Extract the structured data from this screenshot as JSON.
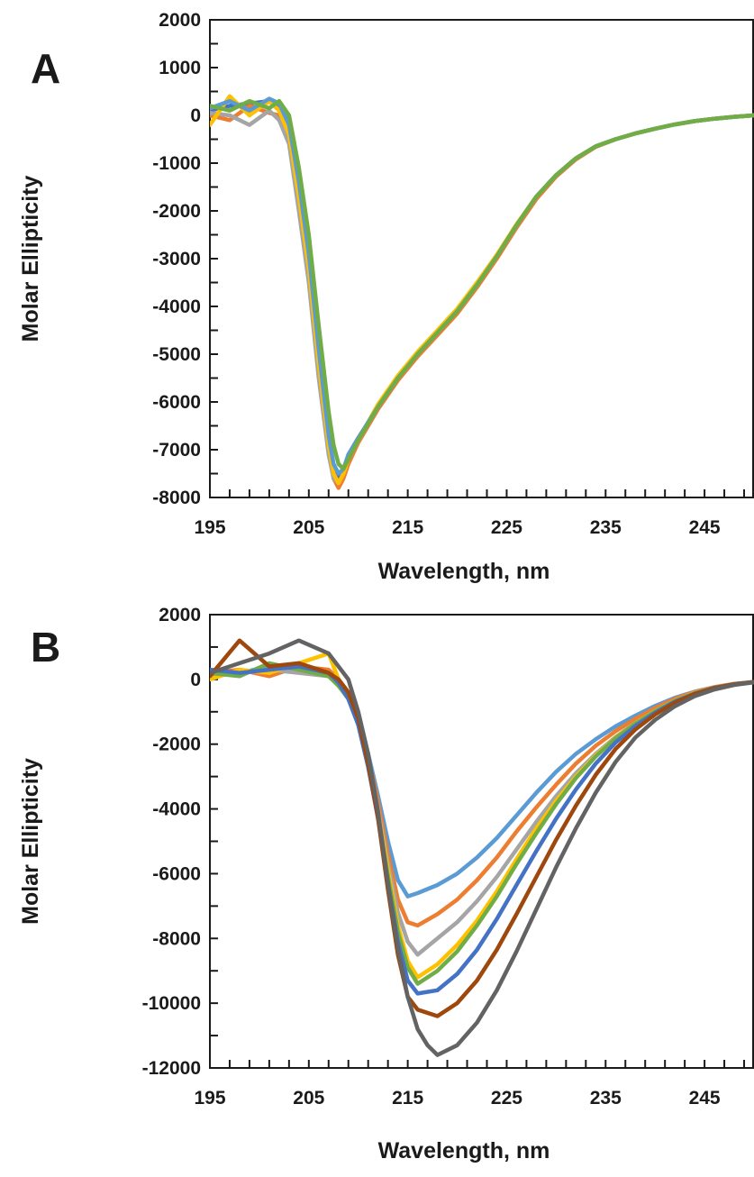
{
  "chart_data": [
    {
      "panel": "A",
      "type": "line",
      "xlabel": "Wavelength, nm",
      "ylabel": "Molar Ellipticity",
      "xlim": [
        195,
        250
      ],
      "ylim": [
        -8000,
        2000
      ],
      "xticks": [
        "195",
        "205",
        "215",
        "225",
        "235",
        "245"
      ],
      "yticks": [
        "2000",
        "1000",
        "0",
        "-1000",
        "-2000",
        "-3000",
        "-4000",
        "-5000",
        "-6000",
        "-7000",
        "-8000"
      ],
      "grid": false,
      "series": [
        {
          "color": "#4472C4",
          "x": [
            195,
            197,
            199,
            201,
            202,
            203,
            204,
            205,
            206,
            207,
            207.5,
            208,
            208.5,
            209,
            210,
            212,
            214,
            216,
            218,
            220,
            222,
            224,
            226,
            228,
            230,
            232,
            234,
            236,
            238,
            240,
            242,
            244,
            246,
            248,
            250
          ],
          "y": [
            100,
            200,
            250,
            300,
            200,
            -300,
            -1500,
            -3000,
            -5000,
            -6800,
            -7400,
            -7600,
            -7500,
            -7200,
            -6800,
            -6100,
            -5500,
            -5000,
            -4550,
            -4100,
            -3550,
            -2950,
            -2300,
            -1700,
            -1250,
            -900,
            -650,
            -500,
            -380,
            -280,
            -190,
            -120,
            -70,
            -30,
            0
          ]
        },
        {
          "color": "#ED7D31",
          "x": [
            195,
            197,
            199,
            201,
            202,
            203,
            204,
            205,
            206,
            207,
            207.5,
            208,
            208.5,
            209,
            210,
            212,
            214,
            216,
            218,
            220,
            222,
            224,
            226,
            228,
            230,
            232,
            234,
            236,
            238,
            240,
            242,
            244,
            246,
            248,
            250
          ],
          "y": [
            0,
            -100,
            200,
            50,
            0,
            -500,
            -1800,
            -3300,
            -5300,
            -7000,
            -7600,
            -7800,
            -7600,
            -7300,
            -6850,
            -6150,
            -5550,
            -5050,
            -4600,
            -4150,
            -3600,
            -3000,
            -2350,
            -1750,
            -1280,
            -920,
            -660,
            -500,
            -380,
            -280,
            -190,
            -120,
            -70,
            -30,
            0
          ]
        },
        {
          "color": "#A5A5A5",
          "x": [
            195,
            197,
            199,
            201,
            202,
            203,
            204,
            205,
            206,
            207,
            207.5,
            208,
            208.5,
            209,
            210,
            212,
            214,
            216,
            218,
            220,
            222,
            224,
            226,
            228,
            230,
            232,
            234,
            236,
            238,
            240,
            242,
            244,
            246,
            248,
            250
          ],
          "y": [
            50,
            0,
            -200,
            100,
            -100,
            -600,
            -2000,
            -3500,
            -5500,
            -7100,
            -7600,
            -7700,
            -7500,
            -7200,
            -6800,
            -6100,
            -5500,
            -5000,
            -4550,
            -4100,
            -3550,
            -2950,
            -2300,
            -1700,
            -1250,
            -900,
            -650,
            -500,
            -380,
            -280,
            -190,
            -120,
            -70,
            -30,
            0
          ]
        },
        {
          "color": "#FFC000",
          "x": [
            195,
            197,
            199,
            201,
            202,
            203,
            204,
            205,
            206,
            207,
            207.5,
            208,
            208.5,
            209,
            210,
            212,
            214,
            216,
            218,
            220,
            222,
            224,
            226,
            228,
            230,
            232,
            234,
            236,
            238,
            240,
            242,
            244,
            246,
            248,
            250
          ],
          "y": [
            -200,
            400,
            0,
            300,
            100,
            -400,
            -1700,
            -3200,
            -5200,
            -6900,
            -7500,
            -7700,
            -7500,
            -7200,
            -6800,
            -6050,
            -5450,
            -4950,
            -4500,
            -4050,
            -3500,
            -2920,
            -2280,
            -1700,
            -1250,
            -900,
            -650,
            -500,
            -380,
            -280,
            -190,
            -120,
            -70,
            -30,
            0
          ]
        },
        {
          "color": "#5B9BD5",
          "x": [
            195,
            197,
            199,
            201,
            202,
            203,
            204,
            205,
            206,
            207,
            207.5,
            208,
            208.5,
            209,
            210,
            212,
            214,
            216,
            218,
            220,
            222,
            224,
            226,
            228,
            230,
            232,
            234,
            236,
            238,
            240,
            242,
            244,
            246,
            248,
            250
          ],
          "y": [
            150,
            300,
            100,
            350,
            250,
            -200,
            -1400,
            -2900,
            -4900,
            -6700,
            -7300,
            -7500,
            -7400,
            -7100,
            -6750,
            -6100,
            -5500,
            -5000,
            -4550,
            -4100,
            -3550,
            -2950,
            -2300,
            -1700,
            -1250,
            -900,
            -650,
            -500,
            -380,
            -280,
            -190,
            -120,
            -70,
            -30,
            0
          ]
        },
        {
          "color": "#70AD47",
          "x": [
            195,
            197,
            199,
            201,
            202,
            203,
            204,
            205,
            206,
            207,
            207.5,
            208,
            208.5,
            209,
            210,
            212,
            214,
            216,
            218,
            220,
            222,
            224,
            226,
            228,
            230,
            232,
            234,
            236,
            238,
            240,
            242,
            244,
            246,
            248,
            250
          ],
          "y": [
            200,
            100,
            300,
            150,
            300,
            0,
            -1100,
            -2500,
            -4400,
            -6200,
            -6900,
            -7300,
            -7400,
            -7200,
            -6800,
            -6100,
            -5500,
            -5000,
            -4550,
            -4100,
            -3550,
            -2950,
            -2300,
            -1700,
            -1250,
            -900,
            -650,
            -500,
            -380,
            -280,
            -190,
            -120,
            -70,
            -30,
            0
          ]
        }
      ]
    },
    {
      "panel": "B",
      "type": "line",
      "xlabel": "Wavelength, nm",
      "ylabel": "Molar Ellipticity",
      "xlim": [
        195,
        250
      ],
      "ylim": [
        -12000,
        2000
      ],
      "xticks": [
        "195",
        "205",
        "215",
        "225",
        "235",
        "245"
      ],
      "yticks": [
        "2000",
        "0",
        "-2000",
        "-4000",
        "-6000",
        "-8000",
        "-10000",
        "-12000"
      ],
      "grid": false,
      "series": [
        {
          "color": "#5B9BD5",
          "x": [
            195,
            198,
            201,
            204,
            207,
            208,
            209,
            210,
            211,
            212,
            213,
            214,
            215,
            216,
            218,
            220,
            222,
            224,
            226,
            228,
            230,
            232,
            234,
            236,
            238,
            240,
            242,
            244,
            246,
            248,
            250
          ],
          "y": [
            300,
            200,
            400,
            300,
            200,
            0,
            -400,
            -1200,
            -2300,
            -3600,
            -5000,
            -6200,
            -6700,
            -6600,
            -6350,
            -6000,
            -5500,
            -4900,
            -4200,
            -3500,
            -2850,
            -2300,
            -1850,
            -1450,
            -1120,
            -820,
            -570,
            -380,
            -240,
            -140,
            -80
          ]
        },
        {
          "color": "#ED7D31",
          "x": [
            195,
            198,
            201,
            204,
            207,
            208,
            209,
            210,
            211,
            212,
            213,
            214,
            215,
            216,
            218,
            220,
            222,
            224,
            226,
            228,
            230,
            232,
            234,
            236,
            238,
            240,
            242,
            244,
            246,
            248,
            250
          ],
          "y": [
            200,
            300,
            100,
            400,
            300,
            0,
            -400,
            -1200,
            -2400,
            -3800,
            -5400,
            -6800,
            -7500,
            -7600,
            -7250,
            -6800,
            -6200,
            -5500,
            -4700,
            -3950,
            -3250,
            -2600,
            -2050,
            -1600,
            -1220,
            -880,
            -600,
            -390,
            -240,
            -140,
            -80
          ]
        },
        {
          "color": "#A5A5A5",
          "x": [
            195,
            198,
            201,
            204,
            207,
            208,
            209,
            210,
            211,
            212,
            213,
            214,
            215,
            216,
            218,
            220,
            222,
            224,
            226,
            228,
            230,
            232,
            234,
            236,
            238,
            240,
            242,
            244,
            246,
            248,
            250
          ],
          "y": [
            100,
            200,
            300,
            200,
            100,
            -100,
            -500,
            -1300,
            -2500,
            -4000,
            -5700,
            -7200,
            -8100,
            -8500,
            -8000,
            -7500,
            -6850,
            -6100,
            -5250,
            -4400,
            -3600,
            -2900,
            -2300,
            -1780,
            -1350,
            -970,
            -660,
            -420,
            -260,
            -150,
            -80
          ]
        },
        {
          "color": "#FFC000",
          "x": [
            195,
            198,
            201,
            204,
            207,
            208,
            209,
            210,
            211,
            212,
            213,
            214,
            215,
            216,
            218,
            220,
            222,
            224,
            226,
            228,
            230,
            232,
            234,
            236,
            238,
            240,
            242,
            244,
            246,
            248,
            250
          ],
          "y": [
            0,
            300,
            200,
            500,
            800,
            0,
            -500,
            -1300,
            -2600,
            -4100,
            -5900,
            -7600,
            -8700,
            -9200,
            -8800,
            -8200,
            -7450,
            -6550,
            -5550,
            -4600,
            -3750,
            -3000,
            -2350,
            -1800,
            -1360,
            -980,
            -660,
            -420,
            -260,
            -150,
            -80
          ]
        },
        {
          "color": "#70AD47",
          "x": [
            195,
            198,
            201,
            204,
            207,
            208,
            209,
            210,
            211,
            212,
            213,
            214,
            215,
            216,
            218,
            220,
            222,
            224,
            226,
            228,
            230,
            232,
            234,
            236,
            238,
            240,
            242,
            244,
            246,
            248,
            250
          ],
          "y": [
            200,
            100,
            500,
            300,
            100,
            -200,
            -600,
            -1400,
            -2700,
            -4200,
            -6100,
            -7800,
            -8900,
            -9400,
            -9000,
            -8400,
            -7600,
            -6700,
            -5700,
            -4750,
            -3850,
            -3050,
            -2380,
            -1820,
            -1370,
            -990,
            -670,
            -430,
            -260,
            -150,
            -80
          ]
        },
        {
          "color": "#4472C4",
          "x": [
            195,
            198,
            201,
            204,
            207,
            208,
            209,
            210,
            211,
            212,
            213,
            214,
            215,
            216,
            218,
            220,
            222,
            224,
            226,
            228,
            230,
            232,
            234,
            236,
            238,
            240,
            242,
            244,
            246,
            248,
            250
          ],
          "y": [
            300,
            200,
            300,
            400,
            200,
            -100,
            -600,
            -1400,
            -2700,
            -4300,
            -6300,
            -8100,
            -9300,
            -9700,
            -9600,
            -9100,
            -8350,
            -7400,
            -6350,
            -5300,
            -4300,
            -3400,
            -2600,
            -1950,
            -1440,
            -1030,
            -690,
            -440,
            -260,
            -150,
            -80
          ]
        },
        {
          "color": "#9E480E",
          "x": [
            195,
            198,
            201,
            204,
            207,
            208,
            209,
            210,
            211,
            212,
            213,
            214,
            215,
            216,
            218,
            220,
            222,
            224,
            226,
            228,
            230,
            232,
            234,
            236,
            238,
            240,
            242,
            244,
            246,
            248,
            250
          ],
          "y": [
            100,
            1200,
            400,
            500,
            200,
            0,
            -400,
            -1200,
            -2600,
            -4300,
            -6500,
            -8500,
            -9800,
            -10200,
            -10400,
            -10000,
            -9300,
            -8350,
            -7250,
            -6100,
            -4950,
            -3900,
            -2950,
            -2150,
            -1550,
            -1080,
            -720,
            -450,
            -270,
            -150,
            -80
          ]
        },
        {
          "color": "#636363",
          "x": [
            195,
            198,
            201,
            204,
            207,
            208,
            209,
            210,
            211,
            212,
            213,
            214,
            215,
            216,
            217,
            218,
            220,
            222,
            224,
            226,
            228,
            230,
            232,
            234,
            236,
            238,
            240,
            242,
            244,
            246,
            248,
            250
          ],
          "y": [
            200,
            500,
            800,
            1200,
            800,
            400,
            0,
            -1000,
            -2300,
            -4100,
            -6300,
            -8300,
            -9800,
            -10800,
            -11300,
            -11600,
            -11300,
            -10600,
            -9600,
            -8400,
            -7100,
            -5800,
            -4600,
            -3500,
            -2550,
            -1800,
            -1250,
            -830,
            -520,
            -310,
            -170,
            -90
          ]
        }
      ]
    }
  ]
}
